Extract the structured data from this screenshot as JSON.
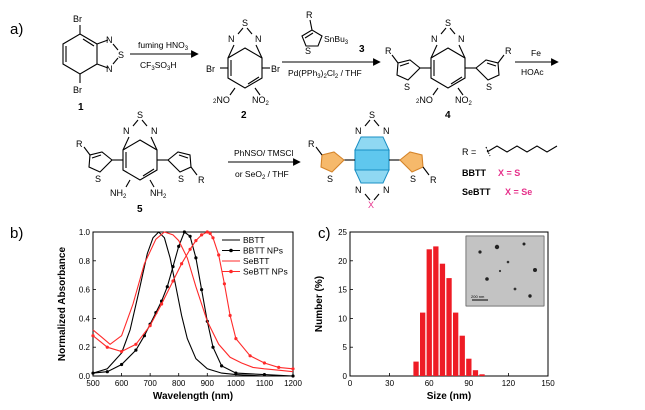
{
  "panels": {
    "a": "a)",
    "b": "b)",
    "c": "c)"
  },
  "scheme": {
    "atoms": {
      "Br": "Br",
      "N": "N",
      "S": "S",
      "Se": "Se",
      "R": "R",
      "X": "X",
      "NO2": "NO",
      "NO2_sub": "2",
      "NH2": "NH",
      "NH2_sub": "2",
      "SnBu3": "SnBu",
      "SnBu3_sub": "3"
    },
    "compounds": {
      "c1": "1",
      "c2": "2",
      "c3": "3",
      "c4": "4",
      "c5": "5"
    },
    "step1": {
      "top": "fuming HNO",
      "top_sub": "3",
      "bottom": "CF",
      "bottom_sub1": "3",
      "bottom_mid": "SO",
      "bottom_sub2": "3",
      "bottom_end": "H"
    },
    "step2": {
      "bottom": "Pd(PPh",
      "bottom_sub1": "3",
      "bottom_mid": ")",
      "bottom_sub2": "2",
      "bottom_end": "Cl",
      "bottom_sub3": "2",
      "bottom_tail": " / THF"
    },
    "step3": {
      "top": "Fe",
      "bottom": "HOAc"
    },
    "step4": {
      "top": "PhNSO/ TMSCl",
      "bottom": "or SeO",
      "bottom_sub": "2",
      "bottom_end": " / THF"
    },
    "r_def": "R =",
    "bbtt": {
      "name": "BBTT",
      "x": "X = S"
    },
    "sebtt": {
      "name": "SeBTT",
      "x": "X = Se"
    }
  },
  "chart_data": [
    {
      "type": "line",
      "xlabel": "Wavelength (nm)",
      "ylabel": "Normalized Absorbance",
      "xlim": [
        500,
        1200
      ],
      "ylim": [
        0.0,
        1.0
      ],
      "xticks": [
        500,
        600,
        700,
        800,
        900,
        1000,
        1100,
        1200
      ],
      "yticks": [
        0.0,
        0.2,
        0.4,
        0.6,
        0.8,
        1.0
      ],
      "legend_position": "top-right",
      "series": [
        {
          "name": "BBTT",
          "color": "#000000",
          "marker": "none",
          "x": [
            500,
            550,
            600,
            630,
            660,
            690,
            710,
            730,
            750,
            770,
            790,
            810,
            830,
            860,
            900,
            950,
            1000,
            1100,
            1200
          ],
          "y": [
            0.02,
            0.05,
            0.16,
            0.32,
            0.58,
            0.85,
            0.96,
            1.0,
            0.96,
            0.82,
            0.62,
            0.42,
            0.26,
            0.12,
            0.05,
            0.02,
            0.01,
            0.0,
            0.0
          ]
        },
        {
          "name": "BBTT NPs",
          "color": "#000000",
          "marker": "circle",
          "x": [
            500,
            550,
            600,
            650,
            680,
            700,
            720,
            740,
            760,
            780,
            800,
            820,
            840,
            860,
            880,
            900,
            920,
            950,
            1000,
            1100,
            1200
          ],
          "y": [
            0.02,
            0.03,
            0.08,
            0.18,
            0.28,
            0.36,
            0.44,
            0.52,
            0.62,
            0.76,
            0.9,
            1.0,
            0.97,
            0.82,
            0.6,
            0.38,
            0.2,
            0.07,
            0.02,
            0.01,
            0.0
          ]
        },
        {
          "name": "SeBTT",
          "color": "#ff2a2a",
          "marker": "none",
          "x": [
            500,
            530,
            560,
            600,
            640,
            680,
            720,
            750,
            780,
            800,
            830,
            860,
            900,
            940,
            980,
            1020,
            1060,
            1100,
            1150,
            1200
          ],
          "y": [
            0.32,
            0.27,
            0.22,
            0.28,
            0.5,
            0.78,
            0.95,
            1.0,
            0.98,
            0.94,
            0.82,
            0.62,
            0.38,
            0.22,
            0.13,
            0.09,
            0.06,
            0.05,
            0.04,
            0.03
          ]
        },
        {
          "name": "SeBTT NPs",
          "color": "#ff2a2a",
          "marker": "circle",
          "x": [
            500,
            550,
            600,
            650,
            700,
            740,
            780,
            810,
            840,
            860,
            880,
            900,
            910,
            920,
            940,
            960,
            980,
            1000,
            1050,
            1100,
            1150,
            1200
          ],
          "y": [
            0.28,
            0.2,
            0.17,
            0.22,
            0.35,
            0.5,
            0.66,
            0.78,
            0.88,
            0.94,
            0.98,
            1.0,
            0.99,
            0.96,
            0.84,
            0.64,
            0.42,
            0.26,
            0.14,
            0.09,
            0.06,
            0.05
          ]
        }
      ]
    },
    {
      "type": "bar",
      "xlabel": "Size (nm)",
      "ylabel": "Number (%)",
      "xlim": [
        0,
        150
      ],
      "ylim": [
        0,
        25
      ],
      "xticks": [
        0,
        30,
        60,
        90,
        120,
        150
      ],
      "yticks": [
        0,
        5,
        10,
        15,
        20,
        25
      ],
      "bar_width": 4,
      "color": "#ee1c25",
      "x": [
        50,
        55,
        60,
        65,
        70,
        75,
        80,
        85,
        90,
        95,
        100
      ],
      "values": [
        2.5,
        11.0,
        22.0,
        22.5,
        19.5,
        17.0,
        11.0,
        7.0,
        3.0,
        1.0,
        0.3
      ],
      "inset": {
        "scale_label": "200 nm"
      }
    }
  ]
}
